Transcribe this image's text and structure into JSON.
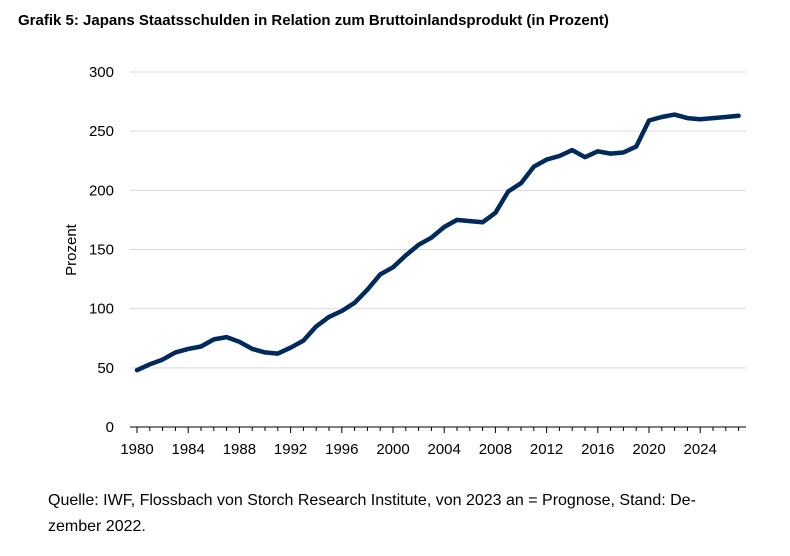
{
  "chart_data": {
    "type": "line",
    "title": "Grafik 5: Japans Staatsschulden in Relation zum Bruttoinlandsprodukt (in Prozent)",
    "xlabel": "",
    "ylabel": "Prozent",
    "ylim": [
      0,
      300
    ],
    "xlim": [
      1980,
      2027
    ],
    "yticks": [
      0,
      50,
      100,
      150,
      200,
      250,
      300
    ],
    "xticks": [
      1980,
      1984,
      1988,
      1992,
      1996,
      2000,
      2004,
      2008,
      2012,
      2016,
      2020,
      2024
    ],
    "grid": "horizontal",
    "line_color": "#002a5c",
    "x": [
      1980,
      1981,
      1982,
      1983,
      1984,
      1985,
      1986,
      1987,
      1988,
      1989,
      1990,
      1991,
      1992,
      1993,
      1994,
      1995,
      1996,
      1997,
      1998,
      1999,
      2000,
      2001,
      2002,
      2003,
      2004,
      2005,
      2006,
      2007,
      2008,
      2009,
      2010,
      2011,
      2012,
      2013,
      2014,
      2015,
      2016,
      2017,
      2018,
      2019,
      2020,
      2021,
      2022,
      2023,
      2024,
      2025,
      2026,
      2027
    ],
    "series": [
      {
        "values": [
          48,
          53,
          57,
          63,
          66,
          68,
          74,
          76,
          72,
          66,
          63,
          62,
          67,
          73,
          85,
          93,
          98,
          105,
          116,
          129,
          135,
          145,
          154,
          160,
          169,
          175,
          174,
          173,
          181,
          199,
          206,
          220,
          226,
          229,
          234,
          228,
          233,
          231,
          232,
          237,
          259,
          262,
          264,
          261,
          260,
          261,
          262,
          263
        ]
      }
    ]
  },
  "source_note": "Quelle: IWF, Flossbach von Storch Research Institute, von 2023 an = Prognose, Stand: De-zember 2022."
}
